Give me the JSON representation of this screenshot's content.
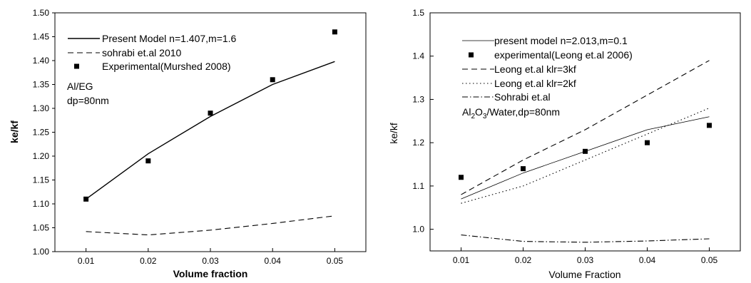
{
  "chart_data": [
    {
      "type": "line",
      "xlabel": "Volume fraction",
      "ylabel": "ke/kf",
      "xlim": [
        0.005,
        0.055
      ],
      "ylim": [
        1.0,
        1.5
      ],
      "xticks": [
        "0.01",
        "0.02",
        "0.03",
        "0.04",
        "0.05"
      ],
      "yticks": [
        "1.00",
        "1.05",
        "1.10",
        "1.15",
        "1.20",
        "1.25",
        "1.30",
        "1.35",
        "1.40",
        "1.45",
        "1.50"
      ],
      "legend_position": "top-left",
      "annotation_lines": [
        "Al/EG",
        "dp=80nm"
      ],
      "series": [
        {
          "name": "Present Model n=1.407,m=1.6",
          "style": "solid",
          "x": [
            0.01,
            0.02,
            0.03,
            0.04,
            0.05
          ],
          "y": [
            1.11,
            1.205,
            1.283,
            1.35,
            1.398
          ]
        },
        {
          "name": "sohrabi et.al 2010",
          "style": "dashed",
          "x": [
            0.01,
            0.02,
            0.03,
            0.04,
            0.05
          ],
          "y": [
            1.042,
            1.035,
            1.045,
            1.059,
            1.075
          ]
        },
        {
          "name": "Experimental(Murshed 2008)",
          "style": "marker",
          "x": [
            0.01,
            0.02,
            0.03,
            0.04,
            0.05
          ],
          "y": [
            1.11,
            1.19,
            1.29,
            1.36,
            1.46
          ]
        }
      ]
    },
    {
      "type": "line",
      "xlabel": "Volume Fraction",
      "ylabel": "ke/kf",
      "xlim": [
        0.005,
        0.055
      ],
      "ylim": [
        0.95,
        1.5
      ],
      "xticks": [
        "0.01",
        "0.02",
        "0.03",
        "0.04",
        "0.05"
      ],
      "yticks": [
        "1.0",
        "1.1",
        "1.2",
        "1.3",
        "1.4",
        "1.5"
      ],
      "legend_position": "top-left",
      "annotation": {
        "main": "Al",
        "sub": "2",
        "rest": "O",
        "sub2": "3",
        "tail": "/Water,dp=80nm"
      },
      "series": [
        {
          "name": "present model n=2.013,m=0.1",
          "style": "thin",
          "x": [
            0.01,
            0.02,
            0.03,
            0.04,
            0.05
          ],
          "y": [
            1.07,
            1.13,
            1.18,
            1.23,
            1.26
          ]
        },
        {
          "name": "experimental(Leong et.al 2006)",
          "style": "marker",
          "x": [
            0.01,
            0.02,
            0.03,
            0.04,
            0.05
          ],
          "y": [
            1.12,
            1.14,
            1.18,
            1.2,
            1.24
          ]
        },
        {
          "name": "Leong et.al klr=3kf",
          "style": "dashed",
          "x": [
            0.01,
            0.02,
            0.03,
            0.04,
            0.05
          ],
          "y": [
            1.08,
            1.16,
            1.23,
            1.31,
            1.39
          ]
        },
        {
          "name": "Leong et.al klr=2kf",
          "style": "dotted",
          "x": [
            0.01,
            0.02,
            0.03,
            0.04,
            0.05
          ],
          "y": [
            1.06,
            1.1,
            1.16,
            1.22,
            1.28
          ]
        },
        {
          "name": "Sohrabi et.al",
          "style": "dashdot",
          "x": [
            0.01,
            0.02,
            0.03,
            0.04,
            0.05
          ],
          "y": [
            0.987,
            0.972,
            0.97,
            0.973,
            0.978
          ]
        }
      ]
    }
  ]
}
